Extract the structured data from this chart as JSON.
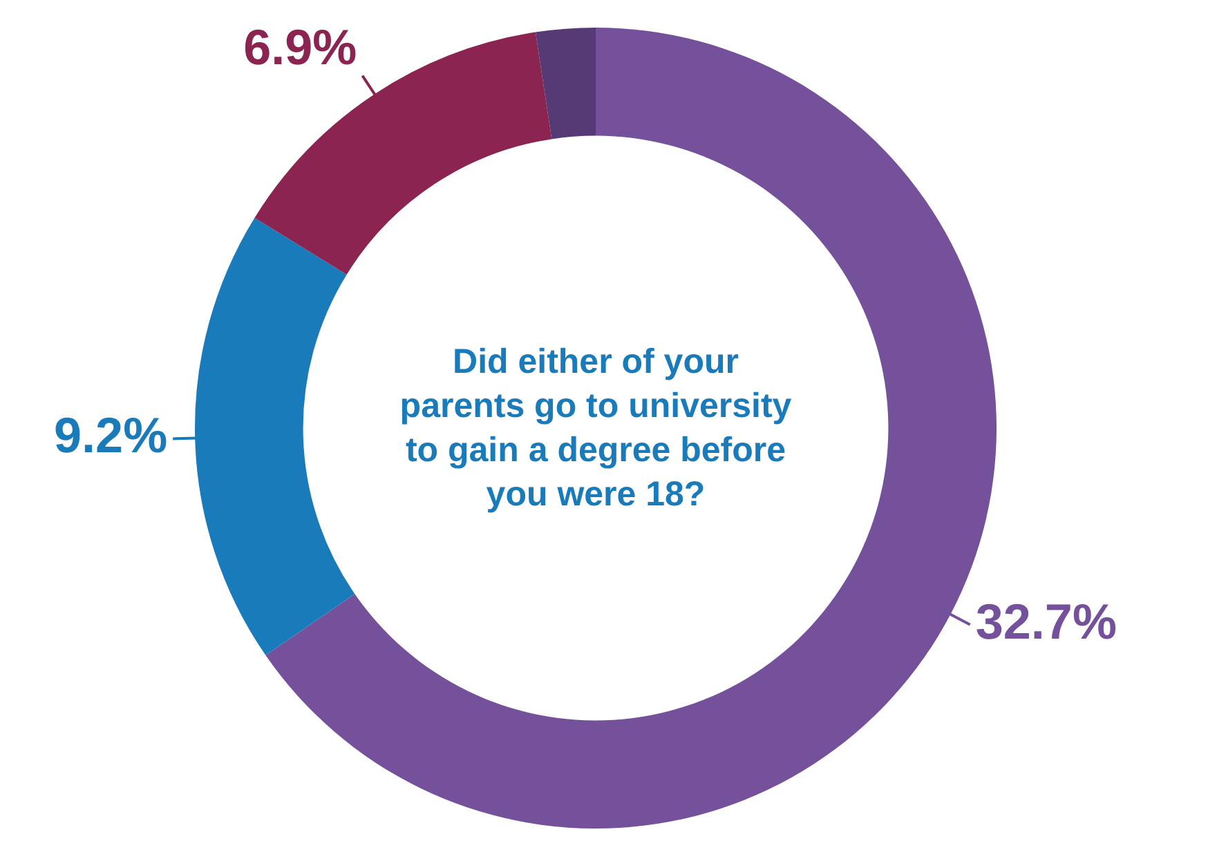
{
  "chart_data": {
    "type": "donut",
    "title": "Did either of your parents go to university to gain a degree before you were 18?",
    "categories": [
      null,
      null,
      null,
      null
    ],
    "values": [
      32.7,
      9.2,
      6.9,
      1.2
    ],
    "value_labels": [
      "32.7%",
      "9.2%",
      "6.9%",
      null
    ],
    "colors": [
      "#76519b",
      "#1a7bbb",
      "#8c2452",
      "#553a76"
    ],
    "legend": false
  }
}
